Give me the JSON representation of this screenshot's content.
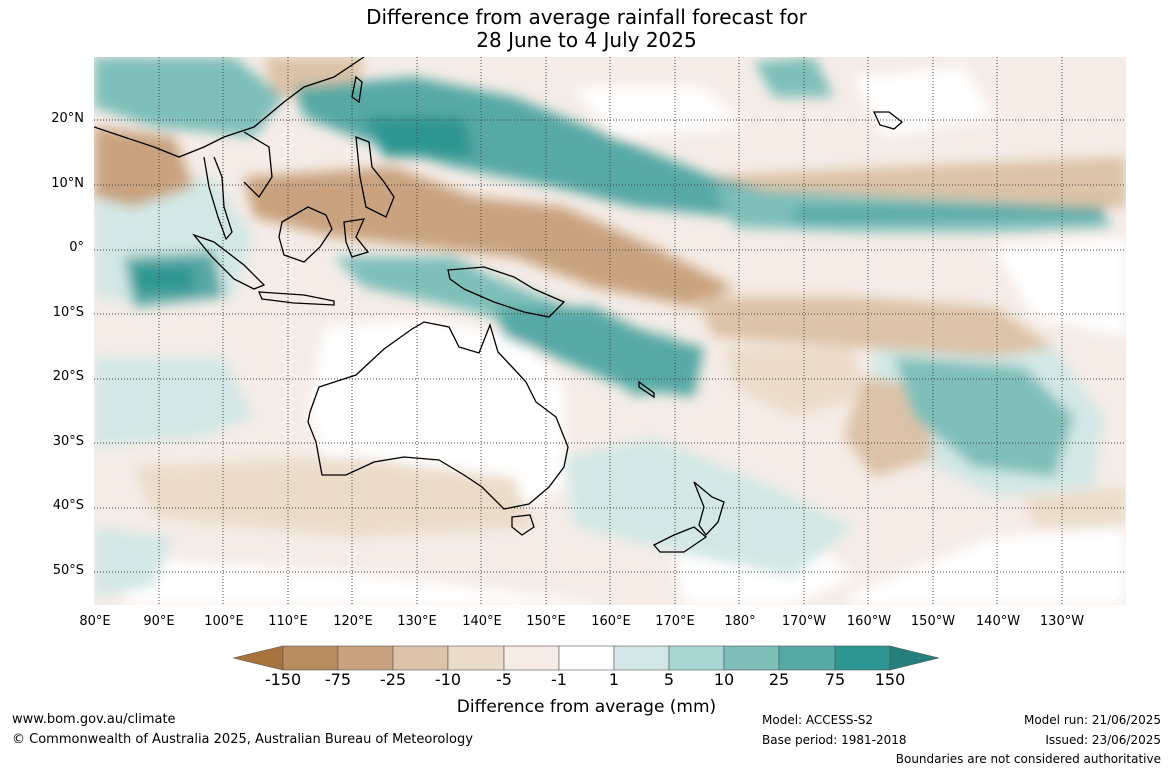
{
  "title_line1": "Difference from average rainfall forecast for",
  "title_line2": "28 June to 4 July 2025",
  "lat_labels": [
    "20°N",
    "10°N",
    "0°",
    "10°S",
    "20°S",
    "30°S",
    "40°S",
    "50°S"
  ],
  "lon_labels": [
    "80°E",
    "90°E",
    "100°E",
    "110°E",
    "120°E",
    "130°E",
    "140°E",
    "150°E",
    "160°E",
    "170°E",
    "180°",
    "170°W",
    "160°W",
    "150°W",
    "140°W",
    "130°W"
  ],
  "legend": {
    "ticks": [
      "-150",
      "-75",
      "-25",
      "-10",
      "-5",
      "-1",
      "1",
      "5",
      "10",
      "25",
      "75",
      "150"
    ],
    "colors": [
      "#a8733d",
      "#b98c5f",
      "#c9a37f",
      "#dcc2a6",
      "#ebdcca",
      "#f5ece6",
      "#ffffff",
      "#d3e8e6",
      "#a8d5d1",
      "#7ebfba",
      "#56a9a5",
      "#2e9692",
      "#23807d"
    ],
    "title": "Difference from average (mm)"
  },
  "footer": {
    "website": "www.bom.gov.au/climate",
    "copyright": "© Commonwealth of Australia 2025, Australian Bureau of Meteorology",
    "model": "Model: ACCESS-S2",
    "base_period": "Base period: 1981-2018",
    "model_run": "Model run: 21/06/2025",
    "issued": "Issued: 23/06/2025",
    "disclaimer": "Boundaries are not considered authoritative"
  }
}
